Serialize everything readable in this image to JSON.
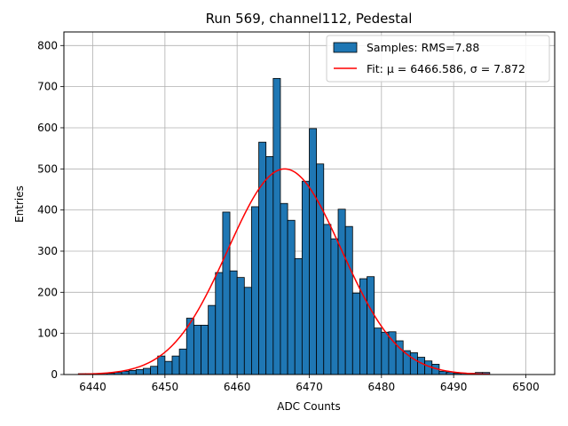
{
  "chart_data": {
    "type": "bar",
    "title": "Run 569, channel112, Pedestal",
    "xlabel": "ADC Counts",
    "ylabel": "Entries",
    "xlim": [
      6436,
      6504
    ],
    "ylim": [
      0,
      833
    ],
    "xticks": [
      "6440",
      "6450",
      "6460",
      "6470",
      "6480",
      "6490",
      "6500"
    ],
    "yticks": [
      "0",
      "100",
      "200",
      "300",
      "400",
      "500",
      "600",
      "700",
      "800"
    ],
    "grid": true,
    "legend": {
      "placement": "upper right",
      "entries": [
        "Samples: RMS=7.88",
        "Fit: μ = 6466.586, σ = 7.872"
      ]
    },
    "bin_width": 1,
    "bins": {
      "x": [
        6438,
        6439,
        6440,
        6441,
        6442,
        6443,
        6444,
        6445,
        6446,
        6447,
        6448,
        6449,
        6450,
        6451,
        6452,
        6453,
        6454,
        6455,
        6456,
        6457,
        6458,
        6459,
        6460,
        6461,
        6462,
        6463,
        6464,
        6465,
        6466,
        6467,
        6468,
        6469,
        6470,
        6471,
        6472,
        6473,
        6474,
        6475,
        6476,
        6477,
        6478,
        6479,
        6480,
        6481,
        6482,
        6483,
        6484,
        6485,
        6486,
        6487,
        6488,
        6489,
        6490,
        6491,
        6492,
        6493,
        6494
      ],
      "values": [
        2,
        2,
        2,
        3,
        3,
        5,
        8,
        10,
        12,
        15,
        20,
        45,
        32,
        45,
        62,
        137,
        120,
        120,
        168,
        248,
        395,
        252,
        236,
        212,
        408,
        565,
        530,
        720,
        416,
        375,
        282,
        470,
        598,
        512,
        365,
        330,
        402,
        360,
        198,
        233,
        238,
        113,
        103,
        104,
        82,
        58,
        53,
        42,
        33,
        25,
        8,
        6,
        3,
        3,
        3,
        5,
        5
      ]
    },
    "fit": {
      "name": "Fit: μ = 6466.586, σ = 7.872",
      "mu": 6466.586,
      "sigma": 7.872,
      "amplitude": 500,
      "x_range": [
        6438,
        6495
      ]
    },
    "colors": {
      "bar_fill": "#1f77b4",
      "bar_edge": "#000000",
      "fit_line": "#ff0000",
      "grid": "#b0b0b0"
    }
  }
}
